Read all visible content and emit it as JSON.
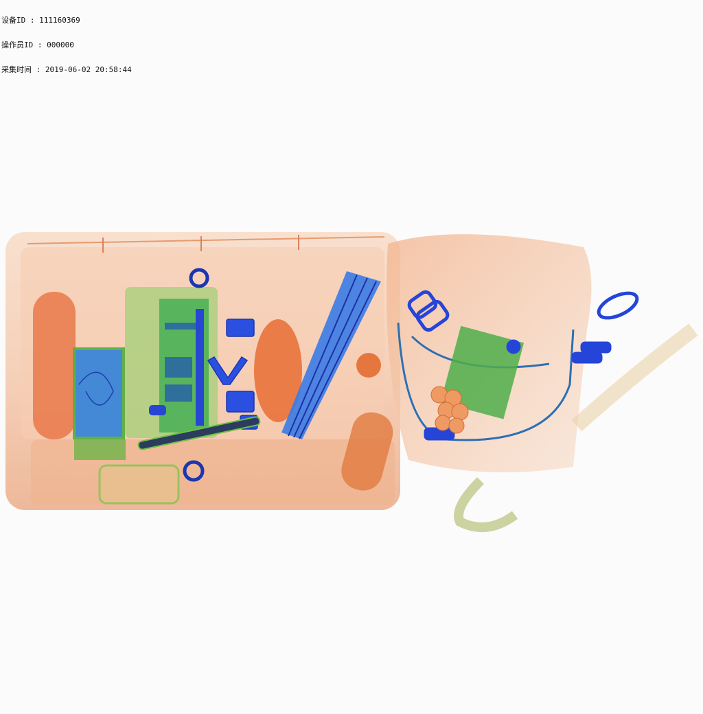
{
  "overlay": {
    "device_id": "设备ID : 111160369",
    "operator_id": "操作员ID : 000000",
    "capture_time": "采集时间 : 2019-06-02 20:58:44"
  },
  "colors": {
    "background": "#fbfbfb",
    "organic": "#e87a3c",
    "mixed": "#6fbf3a",
    "metal": "#2a55e0"
  }
}
